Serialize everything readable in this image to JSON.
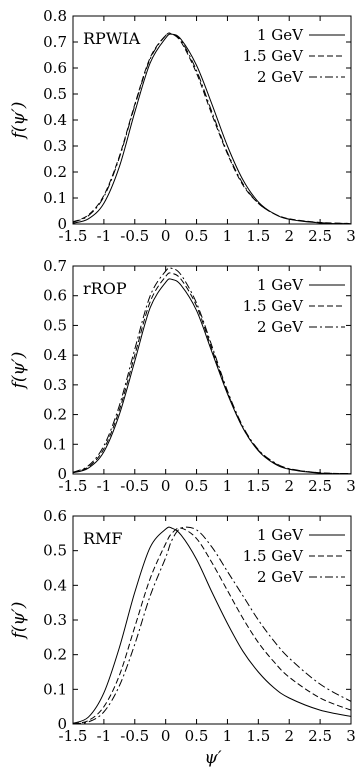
{
  "chart_data": [
    {
      "type": "line",
      "title": "",
      "panel_label": "RPWIA",
      "xlabel": "",
      "ylabel": "f(ψ′)",
      "xlim": [
        -1.5,
        3
      ],
      "ylim": [
        0,
        0.8
      ],
      "xticks": [
        "-1.5",
        "-1",
        "-0.5",
        "0",
        "0.5",
        "1",
        "1.5",
        "2",
        "2.5",
        "3"
      ],
      "yticks": [
        "0",
        "0.1",
        "0.2",
        "0.3",
        "0.4",
        "0.5",
        "0.6",
        "0.7",
        "0.8"
      ],
      "series": [
        {
          "name": "1 GeV",
          "dash": "solid",
          "x": [
            -1.5,
            -1.25,
            -1.0,
            -0.75,
            -0.5,
            -0.25,
            0.0,
            0.1,
            0.25,
            0.5,
            0.75,
            1.0,
            1.25,
            1.5,
            1.75,
            2.0,
            2.5,
            3.0
          ],
          "y": [
            0.003,
            0.02,
            0.08,
            0.22,
            0.43,
            0.62,
            0.715,
            0.73,
            0.71,
            0.61,
            0.46,
            0.3,
            0.17,
            0.085,
            0.04,
            0.018,
            0.004,
            0.001
          ]
        },
        {
          "name": "1.5 GeV",
          "dash": "dashed",
          "x": [
            -1.5,
            -1.25,
            -1.0,
            -0.75,
            -0.5,
            -0.25,
            0.0,
            0.1,
            0.25,
            0.5,
            0.75,
            1.0,
            1.25,
            1.5,
            1.75,
            2.0,
            2.5,
            3.0
          ],
          "y": [
            0.008,
            0.035,
            0.11,
            0.26,
            0.46,
            0.64,
            0.725,
            0.73,
            0.7,
            0.58,
            0.42,
            0.27,
            0.15,
            0.08,
            0.04,
            0.02,
            0.006,
            0.002
          ]
        },
        {
          "name": "2 GeV",
          "dash": "dashdot",
          "x": [
            -1.5,
            -1.25,
            -1.0,
            -0.75,
            -0.5,
            -0.25,
            0.0,
            0.1,
            0.25,
            0.5,
            0.75,
            1.0,
            1.25,
            1.5,
            1.75,
            2.0,
            2.5,
            3.0
          ],
          "y": [
            0.007,
            0.032,
            0.105,
            0.255,
            0.455,
            0.635,
            0.725,
            0.73,
            0.705,
            0.59,
            0.43,
            0.275,
            0.155,
            0.08,
            0.04,
            0.019,
            0.005,
            0.002
          ]
        }
      ]
    },
    {
      "type": "line",
      "title": "",
      "panel_label": "rROP",
      "xlabel": "",
      "ylabel": "f(ψ′)",
      "xlim": [
        -1.5,
        3
      ],
      "ylim": [
        0,
        0.7
      ],
      "xticks": [
        "-1.5",
        "-1",
        "-0.5",
        "0",
        "0.5",
        "1",
        "1.5",
        "2",
        "2.5",
        "3"
      ],
      "yticks": [
        "0",
        "0.1",
        "0.2",
        "0.3",
        "0.4",
        "0.5",
        "0.6",
        "0.7"
      ],
      "series": [
        {
          "name": "1 GeV",
          "dash": "solid",
          "x": [
            -1.5,
            -1.25,
            -1.0,
            -0.75,
            -0.5,
            -0.25,
            0.0,
            0.1,
            0.25,
            0.5,
            0.75,
            1.0,
            1.25,
            1.5,
            1.75,
            2.0,
            2.5,
            3.0
          ],
          "y": [
            0.004,
            0.02,
            0.075,
            0.2,
            0.38,
            0.56,
            0.645,
            0.655,
            0.635,
            0.55,
            0.41,
            0.27,
            0.155,
            0.078,
            0.036,
            0.016,
            0.003,
            0.001
          ]
        },
        {
          "name": "1.5 GeV",
          "dash": "dashed",
          "x": [
            -1.5,
            -1.25,
            -1.0,
            -0.75,
            -0.5,
            -0.25,
            0.0,
            0.1,
            0.25,
            0.5,
            0.75,
            1.0,
            1.25,
            1.5,
            1.75,
            2.0,
            2.5,
            3.0
          ],
          "y": [
            0.005,
            0.024,
            0.085,
            0.215,
            0.4,
            0.58,
            0.665,
            0.675,
            0.655,
            0.565,
            0.42,
            0.275,
            0.155,
            0.08,
            0.038,
            0.017,
            0.004,
            0.001
          ]
        },
        {
          "name": "2 GeV",
          "dash": "dashdot",
          "x": [
            -1.5,
            -1.25,
            -1.0,
            -0.75,
            -0.5,
            -0.25,
            0.0,
            0.1,
            0.25,
            0.5,
            0.75,
            1.0,
            1.25,
            1.5,
            1.75,
            2.0,
            2.5,
            3.0
          ],
          "y": [
            0.006,
            0.028,
            0.095,
            0.23,
            0.42,
            0.6,
            0.683,
            0.692,
            0.67,
            0.575,
            0.43,
            0.28,
            0.16,
            0.082,
            0.04,
            0.018,
            0.004,
            0.001
          ]
        }
      ]
    },
    {
      "type": "line",
      "title": "",
      "panel_label": "RMF",
      "xlabel": "ψ′",
      "ylabel": "f(ψ′)",
      "xlim": [
        -1.5,
        3
      ],
      "ylim": [
        0,
        0.6
      ],
      "xticks": [
        "-1.5",
        "-1",
        "-0.5",
        "0",
        "0.5",
        "1",
        "1.5",
        "2",
        "2.5",
        "3"
      ],
      "yticks": [
        "0",
        "0.1",
        "0.2",
        "0.3",
        "0.4",
        "0.5",
        "0.6"
      ],
      "series": [
        {
          "name": "1 GeV",
          "dash": "solid",
          "x": [
            -1.5,
            -1.25,
            -1.0,
            -0.75,
            -0.5,
            -0.25,
            0.0,
            0.1,
            0.25,
            0.5,
            0.75,
            1.0,
            1.25,
            1.5,
            1.75,
            2.0,
            2.5,
            3.0
          ],
          "y": [
            0.002,
            0.02,
            0.09,
            0.22,
            0.38,
            0.51,
            0.562,
            0.565,
            0.545,
            0.475,
            0.38,
            0.29,
            0.21,
            0.15,
            0.105,
            0.075,
            0.04,
            0.022
          ]
        },
        {
          "name": "1.5 GeV",
          "dash": "dashed",
          "x": [
            -1.5,
            -1.25,
            -1.0,
            -0.75,
            -0.5,
            -0.25,
            0.0,
            0.1,
            0.25,
            0.5,
            0.75,
            1.0,
            1.25,
            1.5,
            1.75,
            2.0,
            2.5,
            3.0
          ],
          "y": [
            0.001,
            0.01,
            0.05,
            0.14,
            0.28,
            0.42,
            0.52,
            0.55,
            0.565,
            0.535,
            0.465,
            0.385,
            0.305,
            0.235,
            0.18,
            0.135,
            0.075,
            0.04
          ]
        },
        {
          "name": "2 GeV",
          "dash": "dashdot",
          "x": [
            -1.5,
            -1.25,
            -1.0,
            -0.75,
            -0.5,
            -0.25,
            0.0,
            0.1,
            0.25,
            0.5,
            0.75,
            1.0,
            1.25,
            1.5,
            1.75,
            2.0,
            2.5,
            3.0
          ],
          "y": [
            0.001,
            0.006,
            0.035,
            0.11,
            0.23,
            0.37,
            0.48,
            0.53,
            0.565,
            0.56,
            0.51,
            0.44,
            0.37,
            0.3,
            0.24,
            0.19,
            0.115,
            0.065
          ]
        }
      ]
    }
  ]
}
